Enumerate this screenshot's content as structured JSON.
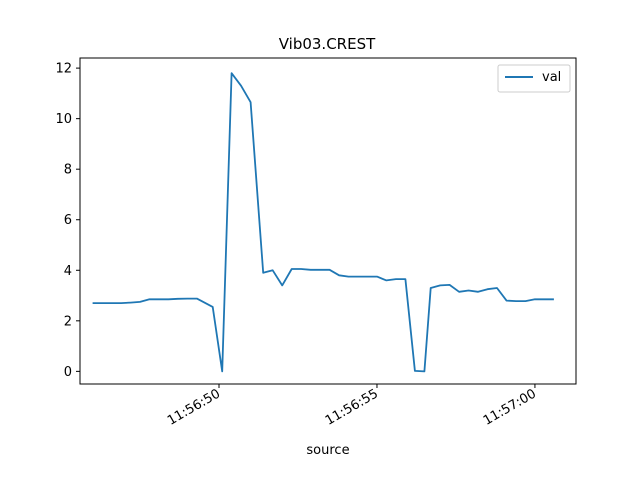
{
  "chart_data": {
    "type": "line",
    "title": "Vib03.CREST",
    "xlabel": "source",
    "ylabel": "",
    "x_tick_labels": [
      "11:56:50",
      "11:56:55",
      "11:57:00"
    ],
    "x_tick_seconds": [
      50,
      55,
      60
    ],
    "xlim_seconds": [
      45.6,
      61.3
    ],
    "ylim": [
      -0.5,
      12.4
    ],
    "y_ticks": [
      0,
      2,
      4,
      6,
      8,
      10,
      12
    ],
    "grid": false,
    "legend": "top-right",
    "series": [
      {
        "name": "val",
        "color": "#1f77b4",
        "x_seconds": [
          46.0,
          46.6,
          46.9,
          47.2,
          47.5,
          47.8,
          48.1,
          48.4,
          48.7,
          49.0,
          49.3,
          49.8,
          50.1,
          50.4,
          50.7,
          51.0,
          51.4,
          51.7,
          52.0,
          52.3,
          52.6,
          52.9,
          53.2,
          53.5,
          53.8,
          54.1,
          54.4,
          54.7,
          55.0,
          55.3,
          55.6,
          55.9,
          56.2,
          56.5,
          56.7,
          57.0,
          57.3,
          57.6,
          57.9,
          58.2,
          58.5,
          58.8,
          59.1,
          59.4,
          59.7,
          60.0,
          60.3,
          60.6
        ],
        "values": [
          2.7,
          2.7,
          2.7,
          2.72,
          2.75,
          2.85,
          2.85,
          2.85,
          2.87,
          2.88,
          2.88,
          2.55,
          0.0,
          11.8,
          11.3,
          10.65,
          3.9,
          4.0,
          3.4,
          4.05,
          4.05,
          4.02,
          4.02,
          4.02,
          3.8,
          3.75,
          3.75,
          3.75,
          3.75,
          3.6,
          3.65,
          3.65,
          0.02,
          0.0,
          3.3,
          3.4,
          3.42,
          3.15,
          3.2,
          3.15,
          3.25,
          3.3,
          2.8,
          2.78,
          2.78,
          2.85,
          2.85,
          2.85
        ]
      }
    ]
  }
}
